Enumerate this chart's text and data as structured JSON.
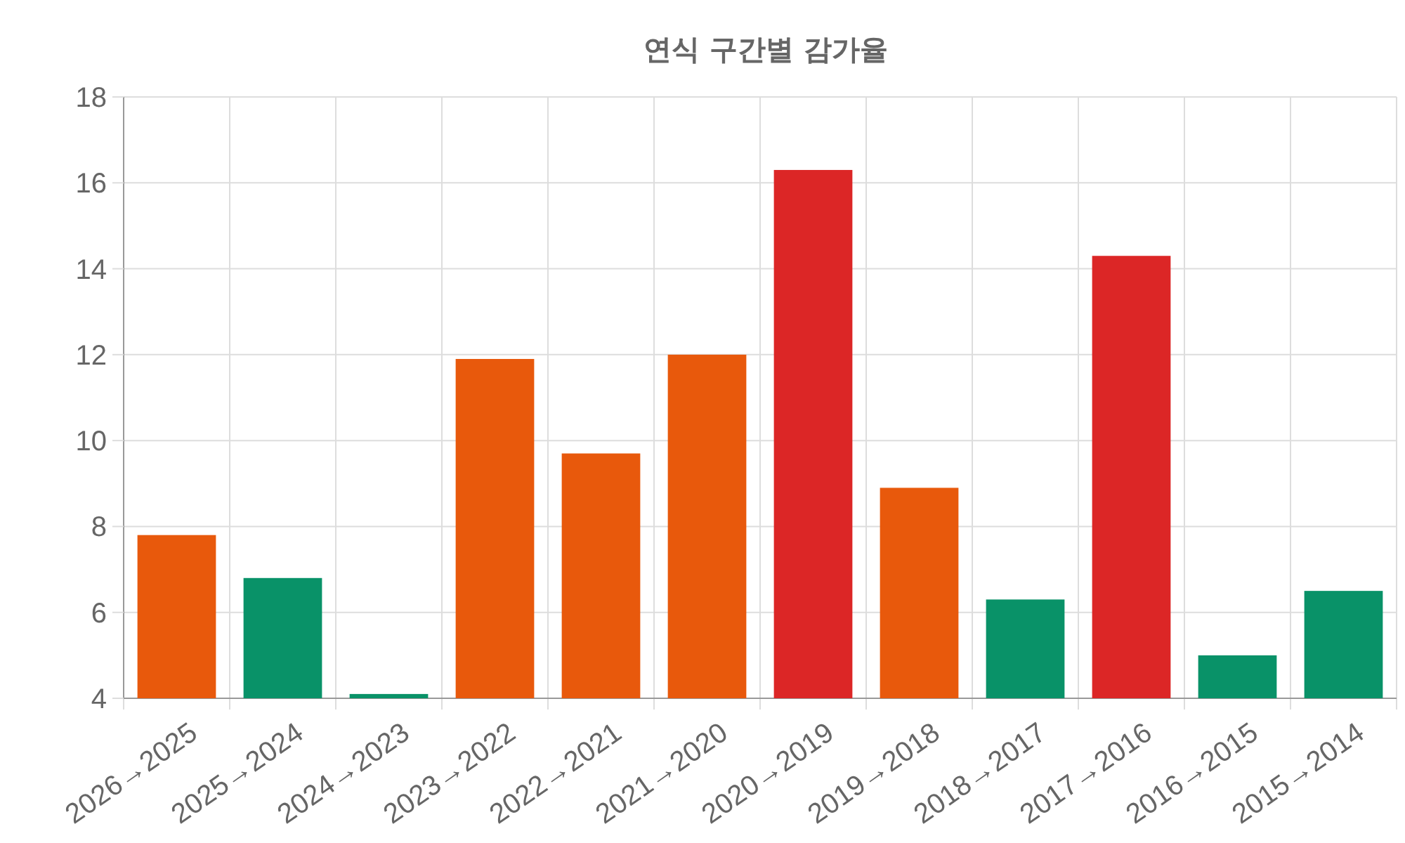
{
  "chart_data": {
    "type": "bar",
    "title": "연식 구간별 감가율",
    "categories": [
      "2026→2025",
      "2025→2024",
      "2024→2023",
      "2023→2022",
      "2022→2021",
      "2021→2020",
      "2020→2019",
      "2019→2018",
      "2018→2017",
      "2017→2016",
      "2016→2015",
      "2015→2014"
    ],
    "values": [
      7.8,
      6.8,
      4.1,
      11.9,
      9.7,
      12.0,
      16.3,
      8.9,
      6.3,
      14.3,
      5.0,
      6.5
    ],
    "colors": [
      "#e8590c",
      "#099268",
      "#099268",
      "#e8590c",
      "#e8590c",
      "#e8590c",
      "#dc2626",
      "#e8590c",
      "#099268",
      "#dc2626",
      "#099268",
      "#099268"
    ],
    "ylim": [
      4,
      18
    ],
    "yticks": [
      4,
      6,
      8,
      10,
      12,
      14,
      16,
      18
    ],
    "grid": true
  }
}
